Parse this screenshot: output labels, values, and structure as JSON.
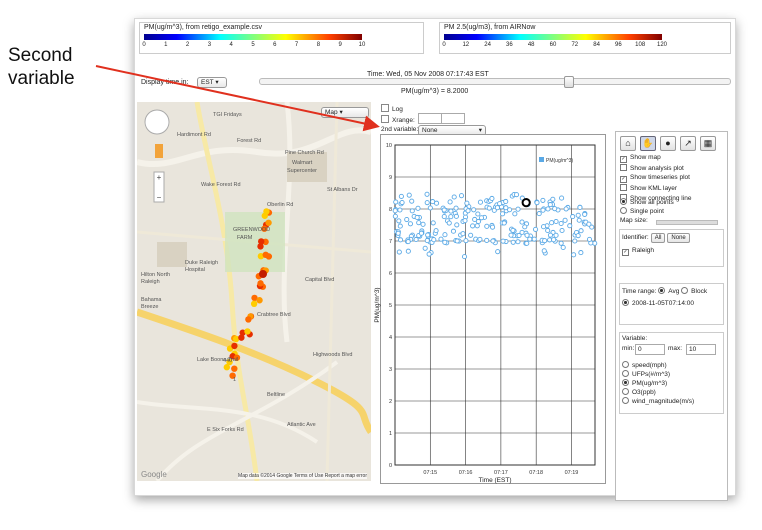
{
  "annotation": {
    "text_line1": "Second",
    "text_line2": "variable"
  },
  "colorbar_left": {
    "title": "PM(ug/m^3), from retigo_example.csv",
    "ticks": [
      "0",
      "1",
      "2",
      "3",
      "4",
      "5",
      "6",
      "7",
      "8",
      "9",
      "10"
    ]
  },
  "colorbar_right": {
    "title": "PM 2.5(ug/m3), from AIRNow",
    "ticks": [
      "0",
      "12",
      "24",
      "36",
      "48",
      "60",
      "72",
      "84",
      "96",
      "108",
      "120"
    ]
  },
  "display_time": {
    "label": "Display time in:",
    "value": "EST"
  },
  "time_label": "Time: Wed, 05 Nov 2008 07:17:43 EST",
  "current_value": "PM(ug/m^3) = 8.2000",
  "map": {
    "type_select": "Map",
    "footer": [
      "Map data ©2014 Google",
      "Terms of Use",
      "Report a map error"
    ],
    "google": "Google",
    "labels": [
      "TGI Fridays",
      "Hardimont Rd",
      "Forest Rd",
      "Walmart",
      "Supercenter",
      "Pine Church Rd",
      "St Albans Dr",
      "GREENWOOD",
      "FARM",
      "Duke Raleigh",
      "Hospital",
      "Hilton North",
      "Raleigh",
      "Bahama",
      "Breeze",
      "Wake Forest Rd",
      "Oberlin Rd",
      "Crabtree Blvd",
      "Lake Boone Trail",
      "Highwoods Blvd",
      "Capital Blvd",
      "E Six Forks Rd",
      "Atlantic Ave",
      "Beltline",
      "440",
      "1"
    ]
  },
  "plot_controls": {
    "log_label": "Log",
    "xrange_label": "Xrange:",
    "second_var_label": "2nd variable:",
    "second_var_value": "None"
  },
  "chart_data": {
    "type": "scatter",
    "xlabel": "Time (EST)",
    "ylabel": "PM(ug/m^3)",
    "legend": "PM(ug/m^3)",
    "x_ticks": [
      "07:15",
      "07:16",
      "07:17",
      "07:18",
      "07:19"
    ],
    "y_ticks": [
      "0",
      "1",
      "2",
      "3",
      "4",
      "5",
      "6",
      "7",
      "8",
      "9",
      "10"
    ],
    "ylim": [
      0,
      10
    ],
    "xlim": [
      "07:14:00",
      "07:19:40"
    ],
    "highlight": {
      "x": "07:17:43",
      "y": 8.2
    },
    "series": [
      {
        "name": "PM(ug/m^3)",
        "color": "#5aa9e6",
        "density_range": [
          6.5,
          8.5
        ]
      }
    ]
  },
  "sidebar": {
    "tools": [
      "home-icon",
      "hand-icon",
      "pin-icon",
      "line-chart-icon",
      "table-icon"
    ],
    "checks": [
      {
        "label": "Show map",
        "checked": true
      },
      {
        "label": "Show analysis plot",
        "checked": false
      },
      {
        "label": "Show timeseries plot",
        "checked": true
      },
      {
        "label": "Show KML layer",
        "checked": false
      },
      {
        "label": "Show connecting line",
        "checked": false
      }
    ],
    "points": [
      {
        "label": "Show all points",
        "on": true
      },
      {
        "label": "Single point",
        "on": false
      }
    ],
    "map_size_label": "Map size:",
    "identifier_label": "Identifier:",
    "identifier_all": "All",
    "identifier_none": "None",
    "identifier_item": "Raleigh",
    "time_range_label": "Time range:",
    "time_range_avg": "Avg",
    "time_range_block": "Block",
    "time_range_value": "2008-11-05T07:14:00",
    "variable_label": "Variable:",
    "min_label": "min:",
    "min_value": "0",
    "max_label": "max:",
    "max_value": "10",
    "variables": [
      {
        "label": "speed(mph)",
        "on": false
      },
      {
        "label": "UFPs(#/m^3)",
        "on": false
      },
      {
        "label": "PM(ug/m^3)",
        "on": true
      },
      {
        "label": "O3(ppb)",
        "on": false
      },
      {
        "label": "wind_magnitude(m/s)",
        "on": false
      }
    ]
  }
}
